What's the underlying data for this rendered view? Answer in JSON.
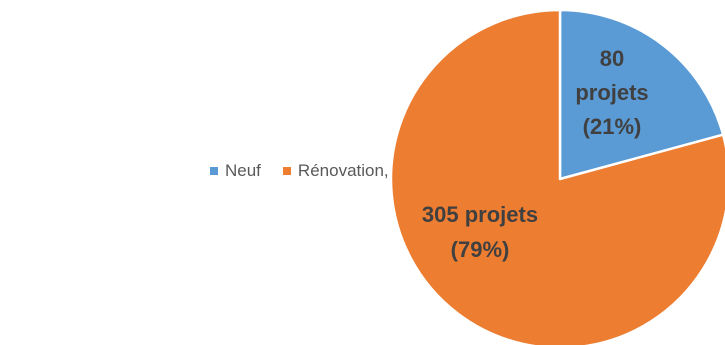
{
  "chart_data": {
    "type": "pie",
    "categories": [
      "Neuf",
      "Rénovation, entretien"
    ],
    "values": [
      80,
      305
    ],
    "percentages": [
      21,
      79
    ],
    "colors": [
      "#5B9BD5",
      "#ED7D31"
    ],
    "data_labels": [
      [
        "80",
        "projets",
        "(21%)"
      ],
      [
        "305 projets",
        "(79%)"
      ]
    ],
    "legend": {
      "placement": "left",
      "entries": [
        "Neuf",
        "Rénovation, entretien"
      ]
    },
    "start_angle_deg": 0,
    "direction": "clockwise"
  }
}
